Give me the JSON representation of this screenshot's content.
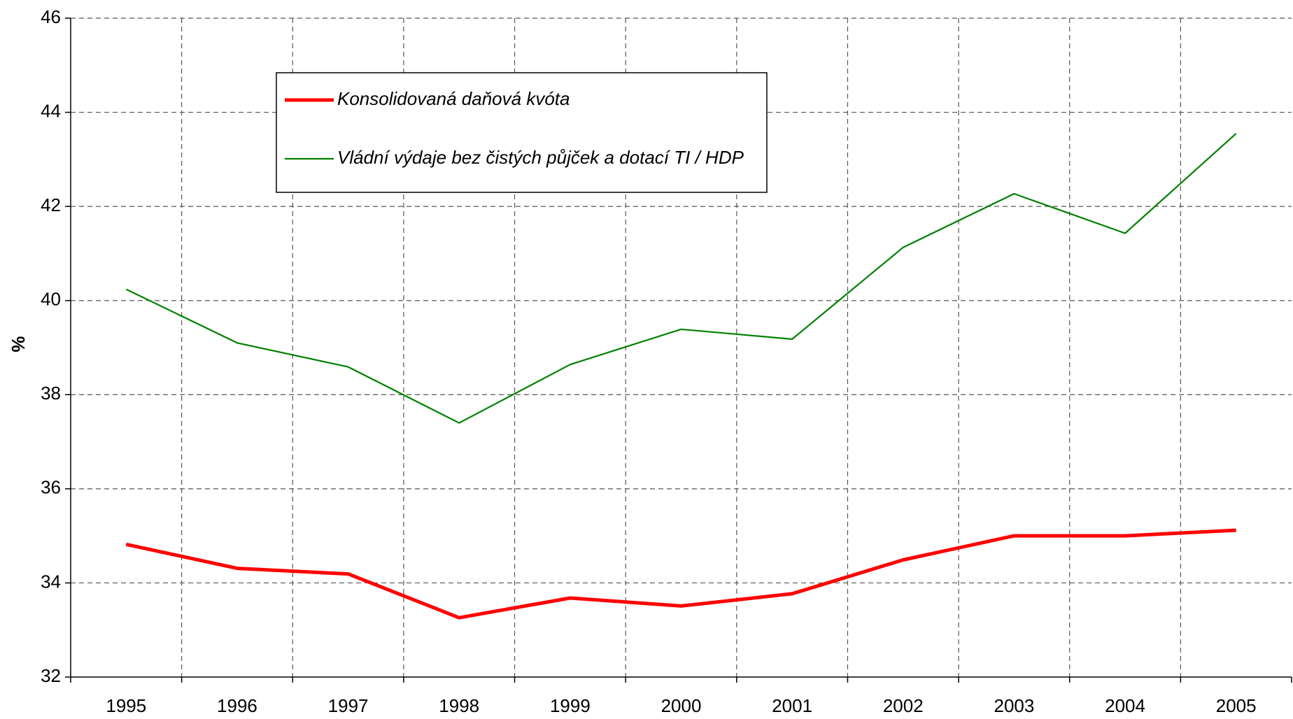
{
  "chart_data": {
    "type": "line",
    "y_label": "%",
    "categories": [
      "1995",
      "1996",
      "1997",
      "1998",
      "1999",
      "2000",
      "2001",
      "2002",
      "2003",
      "2004",
      "2005"
    ],
    "series": [
      {
        "name": "Konsolidovaná daňová kvóta",
        "color": "#ff0000",
        "values": [
          34.82,
          34.31,
          34.19,
          33.26,
          33.68,
          33.51,
          33.77,
          34.49,
          35.0,
          35.0,
          35.12
        ]
      },
      {
        "name": "Vládní výdaje bez čistých půjček a dotací TI / HDP",
        "color": "#008000",
        "values": [
          40.24,
          39.1,
          38.59,
          37.4,
          38.64,
          39.39,
          39.18,
          41.13,
          42.27,
          41.43,
          43.55
        ]
      }
    ],
    "ylim": [
      32,
      46
    ],
    "yticks": [
      32,
      34,
      36,
      38,
      40,
      42,
      44,
      46
    ],
    "grid": true
  }
}
